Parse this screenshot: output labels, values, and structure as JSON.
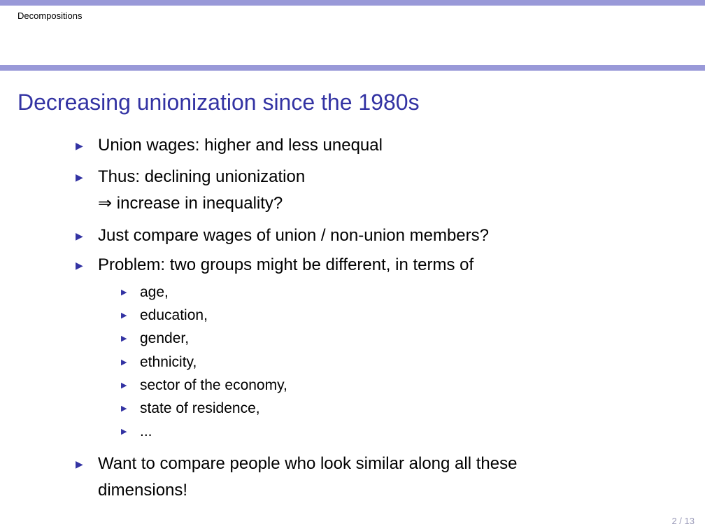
{
  "header": {
    "section": "Decompositions"
  },
  "slide": {
    "title": "Decreasing unionization since the 1980s",
    "marker_glyph": "▶",
    "bullets": [
      {
        "text": "Union wages: higher and less unequal"
      },
      {
        "text": "Thus: declining unionization",
        "continuation": "⇒ increase in inequality?"
      },
      {
        "text": "Just compare wages of union / non-union members?"
      },
      {
        "text": "Problem: two groups might be different, in terms of",
        "subitems": [
          "age,",
          "education,",
          "gender,",
          "ethnicity,",
          "sector of the economy,",
          "state of residence,",
          "..."
        ]
      },
      {
        "text": "Want to compare people who look similar along all these",
        "continuation": "dimensions!"
      }
    ]
  },
  "footer": {
    "page": "2 / 13"
  },
  "colors": {
    "bar": "#9999d8",
    "title": "#3333a3",
    "marker": "#3333a3"
  }
}
